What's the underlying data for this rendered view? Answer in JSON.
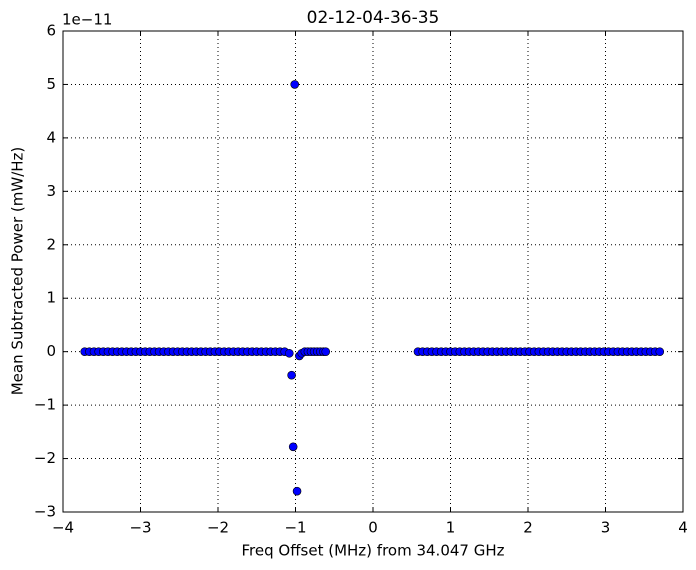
{
  "chart_data": {
    "type": "scatter",
    "title": "02-12-04-36-35",
    "x_label": "Freq Offset (MHz) from 34.047 GHz",
    "y_label": "Mean Subtracted Power (mW/Hz)",
    "y_offset_label": "1e−11",
    "color": "#0000ff",
    "grid": true,
    "xlim": [
      -4,
      4
    ],
    "ylim": [
      -3,
      6
    ],
    "xticks": [
      {
        "value": -4,
        "label": "−4"
      },
      {
        "value": -3,
        "label": "−3"
      },
      {
        "value": -2,
        "label": "−2"
      },
      {
        "value": -1,
        "label": "−1"
      },
      0,
      1,
      2,
      3,
      4
    ],
    "yticks": [
      {
        "value": -3,
        "label": "−3"
      },
      {
        "value": -2,
        "label": "−2"
      },
      {
        "value": -1,
        "label": "−1"
      },
      0,
      1,
      2,
      3,
      4,
      5,
      6
    ],
    "x": [
      -3.72,
      -3.66,
      -3.6,
      -3.54,
      -3.48,
      -3.42,
      -3.36,
      -3.3,
      -3.24,
      -3.18,
      -3.12,
      -3.06,
      -3,
      -2.94,
      -2.88,
      -2.82,
      -2.76,
      -2.7,
      -2.64,
      -2.58,
      -2.52,
      -2.46,
      -2.4,
      -2.34,
      -2.28,
      -2.22,
      -2.16,
      -2.1,
      -2.04,
      -1.98,
      -1.92,
      -1.86,
      -1.8,
      -1.74,
      -1.68,
      -1.62,
      -1.56,
      -1.5,
      -1.44,
      -1.38,
      -1.32,
      -1.26,
      -1.2,
      -1.14,
      -1.08,
      -1.05,
      -1.03,
      -1.01,
      -0.98,
      -0.95,
      -0.92,
      -0.88,
      -0.84,
      -0.8,
      -0.76,
      -0.72,
      -0.68,
      -0.64,
      -0.61,
      0.58,
      0.64,
      0.7,
      0.76,
      0.82,
      0.88,
      0.94,
      1,
      1.06,
      1.12,
      1.18,
      1.24,
      1.3,
      1.36,
      1.42,
      1.48,
      1.54,
      1.6,
      1.66,
      1.72,
      1.78,
      1.84,
      1.9,
      1.96,
      2.02,
      2.08,
      2.14,
      2.2,
      2.26,
      2.32,
      2.38,
      2.44,
      2.5,
      2.56,
      2.62,
      2.68,
      2.74,
      2.8,
      2.86,
      2.92,
      2.98,
      3.04,
      3.1,
      3.16,
      3.22,
      3.28,
      3.34,
      3.4,
      3.46,
      3.52,
      3.58,
      3.64,
      3.7
    ],
    "values": [
      0,
      0,
      0,
      0,
      0,
      0,
      0,
      0,
      0,
      0,
      0,
      0,
      0,
      0,
      0,
      0,
      0,
      0,
      0,
      0,
      0,
      0,
      0,
      0,
      0,
      0,
      0,
      0,
      0,
      0,
      0,
      0,
      0,
      0,
      0,
      0,
      0,
      0,
      0,
      0,
      0,
      0,
      0,
      0,
      -0.03,
      -0.44,
      -1.78,
      5,
      -2.61,
      -0.08,
      -0.03,
      0,
      0,
      0,
      0,
      0,
      0,
      0,
      0,
      0,
      0,
      0,
      0,
      0,
      0,
      0,
      0,
      0,
      0,
      0,
      0,
      0,
      0,
      0,
      0,
      0,
      0,
      0,
      0,
      0,
      0,
      0,
      0,
      0,
      0,
      0,
      0,
      0,
      0,
      0,
      0,
      0,
      0,
      0,
      0,
      0,
      0,
      0,
      0,
      0,
      0,
      0,
      0,
      0,
      0,
      0,
      0,
      0,
      0,
      0,
      0,
      0
    ]
  }
}
